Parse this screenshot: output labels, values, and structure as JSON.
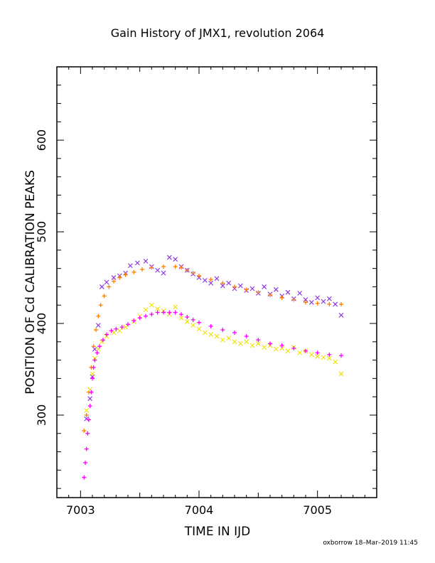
{
  "chart_data": {
    "type": "scatter",
    "title": "Gain History of JMX1, revolution 2064",
    "xlabel": "TIME IN IJD",
    "ylabel": "POSITION OF Cd CALIBRATION PEAKS",
    "xlim": [
      7002.8,
      7005.5
    ],
    "ylim": [
      210,
      680
    ],
    "x_ticks": [
      7003,
      7004,
      7005
    ],
    "y_ticks": [
      300,
      400,
      500,
      600
    ],
    "grid": false,
    "footer": "oxborrow 18–Mar–2019 11:45",
    "series": [
      {
        "marker": "x",
        "color": "#8a2be2",
        "points": [
          [
            7003.05,
            296
          ],
          [
            7003.08,
            318
          ],
          [
            7003.1,
            342
          ],
          [
            7003.12,
            372
          ],
          [
            7003.15,
            398
          ],
          [
            7003.18,
            440
          ],
          [
            7003.22,
            445
          ],
          [
            7003.28,
            450
          ],
          [
            7003.33,
            452
          ],
          [
            7003.38,
            455
          ],
          [
            7003.42,
            463
          ],
          [
            7003.48,
            466
          ],
          [
            7003.55,
            468
          ],
          [
            7003.6,
            462
          ],
          [
            7003.65,
            458
          ],
          [
            7003.7,
            455
          ],
          [
            7003.75,
            472
          ],
          [
            7003.8,
            470
          ],
          [
            7003.85,
            462
          ],
          [
            7003.9,
            458
          ],
          [
            7003.95,
            454
          ],
          [
            7004.0,
            450
          ],
          [
            7004.05,
            447
          ],
          [
            7004.1,
            444
          ],
          [
            7004.15,
            449
          ],
          [
            7004.2,
            441
          ],
          [
            7004.25,
            444
          ],
          [
            7004.3,
            438
          ],
          [
            7004.35,
            441
          ],
          [
            7004.4,
            436
          ],
          [
            7004.45,
            438
          ],
          [
            7004.5,
            433
          ],
          [
            7004.55,
            440
          ],
          [
            7004.6,
            432
          ],
          [
            7004.65,
            437
          ],
          [
            7004.7,
            430
          ],
          [
            7004.75,
            434
          ],
          [
            7004.8,
            427
          ],
          [
            7004.85,
            433
          ],
          [
            7004.9,
            426
          ],
          [
            7004.95,
            423
          ],
          [
            7005.0,
            428
          ],
          [
            7005.05,
            424
          ],
          [
            7005.1,
            427
          ],
          [
            7005.15,
            421
          ],
          [
            7005.2,
            409
          ]
        ]
      },
      {
        "marker": "+",
        "color": "#ff7f00",
        "points": [
          [
            7003.03,
            283
          ],
          [
            7003.05,
            300
          ],
          [
            7003.07,
            325
          ],
          [
            7003.09,
            352
          ],
          [
            7003.11,
            375
          ],
          [
            7003.13,
            393
          ],
          [
            7003.15,
            408
          ],
          [
            7003.17,
            420
          ],
          [
            7003.2,
            430
          ],
          [
            7003.24,
            440
          ],
          [
            7003.28,
            446
          ],
          [
            7003.33,
            450
          ],
          [
            7003.38,
            453
          ],
          [
            7003.45,
            456
          ],
          [
            7003.52,
            459
          ],
          [
            7003.6,
            461
          ],
          [
            7003.7,
            462
          ],
          [
            7003.8,
            462
          ],
          [
            7003.85,
            461
          ],
          [
            7003.9,
            458
          ],
          [
            7003.95,
            455
          ],
          [
            7004.0,
            452
          ],
          [
            7004.1,
            448
          ],
          [
            7004.2,
            444
          ],
          [
            7004.3,
            440
          ],
          [
            7004.4,
            437
          ],
          [
            7004.5,
            434
          ],
          [
            7004.6,
            431
          ],
          [
            7004.7,
            428
          ],
          [
            7004.8,
            426
          ],
          [
            7004.9,
            423
          ],
          [
            7005.0,
            422
          ],
          [
            7005.1,
            421
          ],
          [
            7005.2,
            421
          ]
        ]
      },
      {
        "marker": "x",
        "color": "#f0e000",
        "points": [
          [
            7003.05,
            305
          ],
          [
            7003.08,
            328
          ],
          [
            7003.1,
            345
          ],
          [
            7003.12,
            362
          ],
          [
            7003.15,
            372
          ],
          [
            7003.18,
            380
          ],
          [
            7003.22,
            386
          ],
          [
            7003.28,
            390
          ],
          [
            7003.33,
            392
          ],
          [
            7003.38,
            396
          ],
          [
            7003.45,
            402
          ],
          [
            7003.5,
            408
          ],
          [
            7003.55,
            415
          ],
          [
            7003.6,
            420
          ],
          [
            7003.65,
            416
          ],
          [
            7003.7,
            414
          ],
          [
            7003.75,
            410
          ],
          [
            7003.8,
            418
          ],
          [
            7003.85,
            406
          ],
          [
            7003.9,
            402
          ],
          [
            7003.95,
            398
          ],
          [
            7004.0,
            394
          ],
          [
            7004.05,
            390
          ],
          [
            7004.1,
            388
          ],
          [
            7004.15,
            386
          ],
          [
            7004.2,
            382
          ],
          [
            7004.25,
            384
          ],
          [
            7004.3,
            380
          ],
          [
            7004.35,
            378
          ],
          [
            7004.4,
            380
          ],
          [
            7004.45,
            376
          ],
          [
            7004.5,
            378
          ],
          [
            7004.55,
            374
          ],
          [
            7004.6,
            376
          ],
          [
            7004.65,
            372
          ],
          [
            7004.7,
            373
          ],
          [
            7004.75,
            370
          ],
          [
            7004.8,
            374
          ],
          [
            7004.85,
            368
          ],
          [
            7004.9,
            370
          ],
          [
            7004.95,
            366
          ],
          [
            7005.0,
            364
          ],
          [
            7005.05,
            363
          ],
          [
            7005.1,
            362
          ],
          [
            7005.15,
            358
          ],
          [
            7005.2,
            345
          ]
        ]
      },
      {
        "marker": "+",
        "color": "#ff00ff",
        "points": [
          [
            7003.03,
            232
          ],
          [
            7003.04,
            248
          ],
          [
            7003.05,
            263
          ],
          [
            7003.06,
            280
          ],
          [
            7003.07,
            295
          ],
          [
            7003.08,
            310
          ],
          [
            7003.09,
            325
          ],
          [
            7003.1,
            340
          ],
          [
            7003.11,
            352
          ],
          [
            7003.12,
            360
          ],
          [
            7003.14,
            368
          ],
          [
            7003.16,
            375
          ],
          [
            7003.19,
            382
          ],
          [
            7003.22,
            388
          ],
          [
            7003.26,
            392
          ],
          [
            7003.3,
            394
          ],
          [
            7003.35,
            396
          ],
          [
            7003.4,
            399
          ],
          [
            7003.45,
            403
          ],
          [
            7003.5,
            406
          ],
          [
            7003.55,
            408
          ],
          [
            7003.6,
            410
          ],
          [
            7003.65,
            412
          ],
          [
            7003.7,
            412
          ],
          [
            7003.75,
            412
          ],
          [
            7003.8,
            412
          ],
          [
            7003.85,
            410
          ],
          [
            7003.9,
            407
          ],
          [
            7003.95,
            404
          ],
          [
            7004.0,
            401
          ],
          [
            7004.1,
            397
          ],
          [
            7004.2,
            393
          ],
          [
            7004.3,
            390
          ],
          [
            7004.4,
            386
          ],
          [
            7004.5,
            382
          ],
          [
            7004.6,
            378
          ],
          [
            7004.7,
            376
          ],
          [
            7004.8,
            373
          ],
          [
            7004.9,
            370
          ],
          [
            7005.0,
            368
          ],
          [
            7005.1,
            366
          ],
          [
            7005.2,
            365
          ]
        ]
      }
    ]
  }
}
